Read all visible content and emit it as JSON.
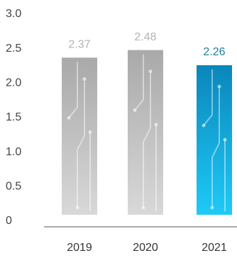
{
  "chart_data": {
    "type": "bar",
    "categories": [
      "2019",
      "2020",
      "2021"
    ],
    "values": [
      2.37,
      2.48,
      2.26
    ],
    "colors": [
      "#a9a9a9",
      "#a9a9a9",
      "#0b86bb"
    ],
    "ylim": [
      0,
      3
    ],
    "yticks": [
      0,
      0.5,
      {
        "value": 1,
        "label": "1.0"
      },
      1.5,
      {
        "value": 2,
        "label": "2.0"
      },
      2.5,
      {
        "value": 3,
        "label": "3.0"
      }
    ],
    "grid": false
  }
}
